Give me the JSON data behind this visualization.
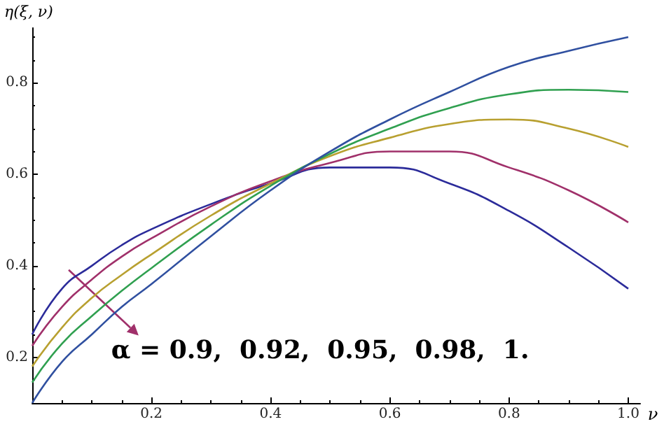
{
  "chart_data": {
    "type": "line",
    "xlabel": "ν",
    "ylabel": "η(ξ, ν)",
    "annotations": [
      "α = 0.9,  0.92,  0.95,  0.98,  1."
    ],
    "x": [
      0,
      0.05,
      0.1,
      0.15,
      0.2,
      0.3,
      0.4,
      0.5,
      0.6,
      0.7,
      0.8,
      0.9,
      1.0
    ],
    "series": [
      {
        "color": "#2b2b9a",
        "values": [
          0.25,
          0.35,
          0.4,
          0.445,
          0.48,
          0.535,
          0.58,
          0.615,
          0.615,
          0.58,
          0.52,
          0.44,
          0.35
        ]
      },
      {
        "color": "#a0306a",
        "values": [
          0.225,
          0.31,
          0.37,
          0.42,
          0.46,
          0.53,
          0.585,
          0.625,
          0.65,
          0.65,
          0.615,
          0.565,
          0.495
        ]
      },
      {
        "color": "#b8a030",
        "values": [
          0.18,
          0.265,
          0.33,
          0.38,
          0.425,
          0.51,
          0.58,
          0.64,
          0.68,
          0.71,
          0.72,
          0.7,
          0.66
        ]
      },
      {
        "color": "#30a050",
        "values": [
          0.145,
          0.23,
          0.29,
          0.345,
          0.395,
          0.49,
          0.575,
          0.645,
          0.7,
          0.745,
          0.775,
          0.785,
          0.78
        ]
      },
      {
        "color": "#3050a0",
        "values": [
          0.1,
          0.19,
          0.25,
          0.31,
          0.36,
          0.465,
          0.565,
          0.65,
          0.72,
          0.78,
          0.835,
          0.87,
          0.9
        ]
      }
    ],
    "xlim": [
      0,
      1.02
    ],
    "ylim": [
      0.1,
      0.92
    ],
    "xticks": [
      0.2,
      0.4,
      0.6,
      0.8,
      {
        "value": 1,
        "label": "1.0"
      }
    ],
    "yticks": [
      0.2,
      0.4,
      0.6,
      0.8
    ],
    "grid": false,
    "marker": "none",
    "line_style": "solid"
  }
}
